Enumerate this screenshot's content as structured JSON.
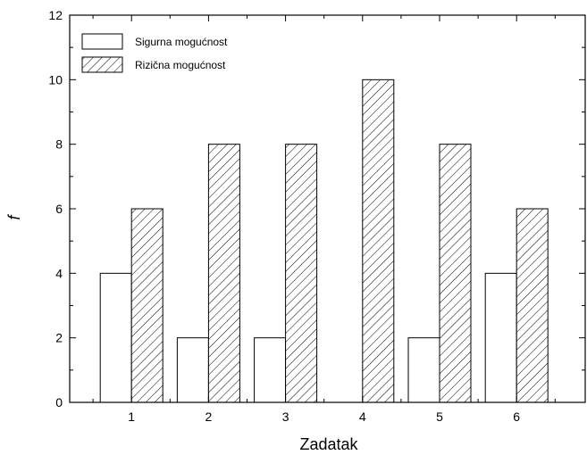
{
  "chart_data": {
    "type": "bar",
    "categories": [
      "1",
      "2",
      "3",
      "4",
      "5",
      "6"
    ],
    "series": [
      {
        "name": "Sigurna mogućnost",
        "values": [
          4,
          2,
          2,
          0,
          2,
          4
        ],
        "pattern": "solid"
      },
      {
        "name": "Rizična mogućnost",
        "values": [
          6,
          8,
          8,
          10,
          8,
          6
        ],
        "pattern": "hatch"
      }
    ],
    "xlabel": "Zadatak",
    "ylabel": "f",
    "ylim": [
      0,
      12
    ],
    "yticks": [
      0,
      2,
      4,
      6,
      8,
      10,
      12
    ],
    "grid": false,
    "legend_position": "top-left",
    "colors": {
      "stroke": "#000000",
      "fill": "#ffffff"
    }
  }
}
